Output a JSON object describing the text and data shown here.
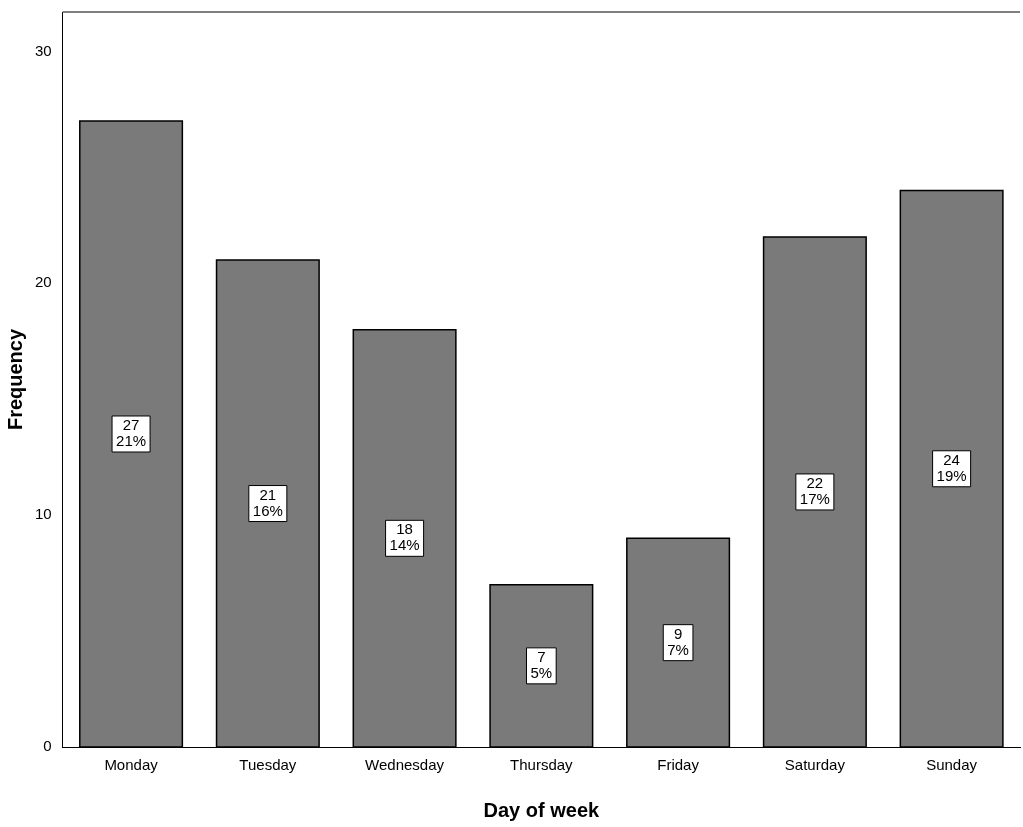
{
  "chart_data": {
    "type": "bar",
    "xlabel": "Day of week",
    "ylabel": "Frequency",
    "categories": [
      "Monday",
      "Tuesday",
      "Wednesday",
      "Thursday",
      "Friday",
      "Saturday",
      "Sunday"
    ],
    "values": [
      27,
      21,
      18,
      7,
      9,
      22,
      24
    ],
    "value_labels": [
      "27\n21%",
      "21\n16%",
      "18\n14%",
      "7\n5%",
      "9\n7%",
      "22\n17%",
      "24\n19%"
    ],
    "color": "#7a7a7a",
    "ylim": [
      0,
      31.7
    ],
    "yticks": [
      0,
      10,
      20,
      30
    ],
    "grid": false,
    "legend": false
  }
}
